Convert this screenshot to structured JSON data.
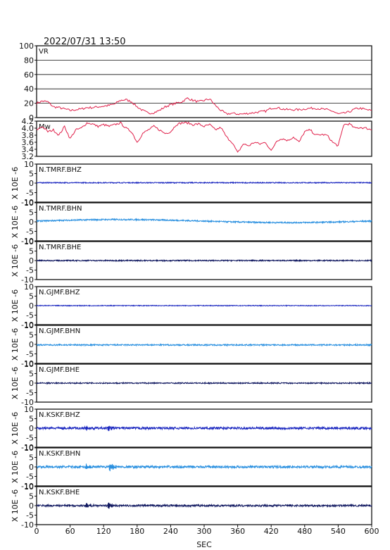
{
  "header": {
    "timestamp": "2022/07/31  13:50"
  },
  "chart_data": {
    "type": "line",
    "xlabel": "SEC",
    "xlim": [
      0,
      600
    ],
    "xticks": [
      0,
      60,
      120,
      180,
      240,
      300,
      360,
      420,
      480,
      540,
      600
    ],
    "panels": [
      {
        "id": "vr",
        "label": "VR",
        "ylim": [
          0,
          100
        ],
        "yticks": [
          0,
          20,
          40,
          60,
          80,
          100
        ],
        "grid": true,
        "color": "#e0204a",
        "x": [
          0,
          10,
          20,
          30,
          40,
          50,
          60,
          70,
          80,
          90,
          100,
          110,
          120,
          130,
          140,
          150,
          160,
          170,
          180,
          190,
          200,
          210,
          220,
          230,
          240,
          250,
          260,
          270,
          280,
          290,
          300,
          310,
          320,
          330,
          340,
          350,
          360,
          370,
          380,
          390,
          400,
          410,
          420,
          430,
          440,
          450,
          460,
          470,
          480,
          490,
          500,
          510,
          520,
          530,
          540,
          550,
          560,
          570,
          580,
          590,
          600
        ],
        "y": [
          20,
          23,
          22,
          15,
          14,
          12,
          10,
          11,
          12,
          14,
          14,
          15,
          16,
          17,
          19,
          24,
          25,
          22,
          15,
          10,
          6,
          7,
          10,
          15,
          18,
          20,
          22,
          27,
          24,
          22,
          24,
          26,
          17,
          10,
          5,
          6,
          5,
          5,
          6,
          7,
          8,
          9,
          13,
          14,
          12,
          11,
          11,
          11,
          12,
          13,
          13,
          12,
          11,
          9,
          5,
          6,
          8,
          12,
          13,
          11,
          10
        ]
      },
      {
        "id": "mw",
        "label": "Mw",
        "ylim": [
          3.2,
          4.2
        ],
        "yticks": [
          3.2,
          3.4,
          3.6,
          3.8,
          4.0,
          4.2
        ],
        "grid": false,
        "color": "#e0204a",
        "x": [
          0,
          10,
          20,
          30,
          40,
          50,
          60,
          70,
          80,
          90,
          100,
          110,
          120,
          130,
          140,
          150,
          160,
          170,
          180,
          190,
          200,
          210,
          220,
          230,
          240,
          250,
          260,
          270,
          280,
          290,
          300,
          310,
          320,
          330,
          340,
          350,
          360,
          370,
          380,
          390,
          400,
          410,
          420,
          430,
          440,
          450,
          460,
          470,
          480,
          490,
          500,
          510,
          520,
          530,
          540,
          550,
          560,
          570,
          580,
          590,
          600
        ],
        "y": [
          3.95,
          4.05,
          3.9,
          3.95,
          3.8,
          4.05,
          3.7,
          3.95,
          4.0,
          4.15,
          4.12,
          4.05,
          4.1,
          4.05,
          4.1,
          4.15,
          4.0,
          3.9,
          3.6,
          3.85,
          3.95,
          4.05,
          3.95,
          3.85,
          3.9,
          4.1,
          4.15,
          4.15,
          4.1,
          4.12,
          4.05,
          4.1,
          3.95,
          4.02,
          3.75,
          3.6,
          3.3,
          3.55,
          3.5,
          3.6,
          3.55,
          3.6,
          3.35,
          3.65,
          3.7,
          3.65,
          3.75,
          3.6,
          3.9,
          3.95,
          3.8,
          3.82,
          3.8,
          3.6,
          3.5,
          4.1,
          4.12,
          4.0,
          4.02,
          4.0,
          3.95
        ]
      },
      {
        "id": "s1",
        "label": "N.TMRF.BHZ",
        "unit": "X 10E -6",
        "ylim": [
          -10,
          10
        ],
        "yticks": [
          -10,
          -5,
          0,
          5,
          10
        ],
        "color": "#1c28c0",
        "noise": 0.25,
        "bursts": [],
        "offset": 0.2
      },
      {
        "id": "s2",
        "label": "N.TMRF.BHN",
        "unit": "X 10E -6",
        "ylim": [
          -10,
          10
        ],
        "yticks": [
          -10,
          -5,
          0,
          5,
          10
        ],
        "color": "#2a90e0",
        "noise": 0.35,
        "bursts": [],
        "offset": 0.4,
        "drift": 0.8
      },
      {
        "id": "s3",
        "label": "N.TMRF.BHE",
        "unit": "X 10E -6",
        "ylim": [
          -10,
          10
        ],
        "yticks": [
          -10,
          -5,
          0,
          5,
          10
        ],
        "color": "#101860",
        "noise": 0.3,
        "bursts": [],
        "offset": 0
      },
      {
        "id": "s4",
        "label": "N.GJMF.BHZ",
        "unit": "X 10E -6",
        "ylim": [
          -10,
          10
        ],
        "yticks": [
          -10,
          -5,
          0,
          5,
          10
        ],
        "color": "#1c28c0",
        "noise": 0.2,
        "bursts": [],
        "offset": 0
      },
      {
        "id": "s5",
        "label": "N.GJMF.BHN",
        "unit": "X 10E -6",
        "ylim": [
          -10,
          10
        ],
        "yticks": [
          -10,
          -5,
          0,
          5,
          10
        ],
        "color": "#2a90e0",
        "noise": 0.35,
        "bursts": [],
        "offset": -0.3
      },
      {
        "id": "s6",
        "label": "N.GJMF.BHE",
        "unit": "X 10E -6",
        "ylim": [
          -10,
          10
        ],
        "yticks": [
          -10,
          -5,
          0,
          5,
          10
        ],
        "color": "#101860",
        "noise": 0.3,
        "bursts": [],
        "offset": 0
      },
      {
        "id": "s7",
        "label": "N.KSKF.BHZ",
        "unit": "X 10E -6",
        "ylim": [
          -10,
          10
        ],
        "yticks": [
          -10,
          -5,
          0,
          5,
          10
        ],
        "color": "#1c28c0",
        "noise": 0.6,
        "bursts": [
          [
            88,
            1.5
          ],
          [
            130,
            2.0
          ]
        ],
        "offset": 0
      },
      {
        "id": "s8",
        "label": "N.KSKF.BHN",
        "unit": "X 10E -6",
        "ylim": [
          -10,
          10
        ],
        "yticks": [
          -10,
          -5,
          0,
          5,
          10
        ],
        "color": "#2a90e0",
        "noise": 0.6,
        "bursts": [
          [
            88,
            1.8
          ],
          [
            132,
            2.2
          ]
        ],
        "offset": 0
      },
      {
        "id": "s9",
        "label": "N.KSKF.BHE",
        "unit": "X 10E -6",
        "ylim": [
          -10,
          10
        ],
        "yticks": [
          -10,
          -5,
          0,
          5,
          10
        ],
        "color": "#101860",
        "noise": 0.5,
        "bursts": [
          [
            88,
            1.3
          ],
          [
            130,
            1.8
          ]
        ],
        "offset": 0
      }
    ]
  }
}
